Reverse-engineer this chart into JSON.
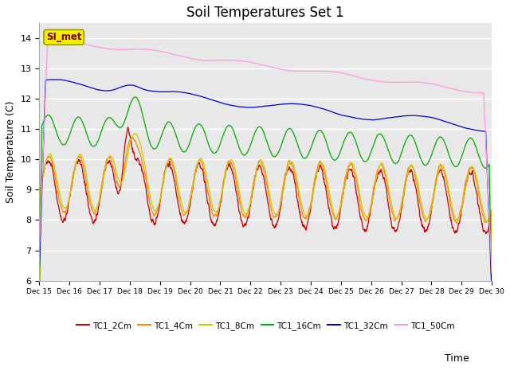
{
  "title": "Soil Temperatures Set 1",
  "xlabel": "Time",
  "ylabel": "Soil Temperature (C)",
  "ylim": [
    6.0,
    14.5
  ],
  "yticks": [
    6.0,
    7.0,
    8.0,
    9.0,
    10.0,
    11.0,
    12.0,
    13.0,
    14.0
  ],
  "x_tick_days": [
    15,
    16,
    17,
    18,
    19,
    20,
    21,
    22,
    23,
    24,
    25,
    26,
    27,
    28,
    29,
    30
  ],
  "colors": {
    "TC1_2Cm": "#cc0000",
    "TC1_4Cm": "#ff8800",
    "TC1_8Cm": "#cccc00",
    "TC1_16Cm": "#00aa00",
    "TC1_32Cm": "#0000cc",
    "TC1_50Cm": "#ff99dd"
  },
  "background_color": "#e8e8e8",
  "figure_background": "#ffffff",
  "si_met_label": "SI_met",
  "si_met_text_color": "#880000",
  "si_met_bg_color": "#f5f000",
  "si_met_edge_color": "#999900",
  "legend_labels": [
    "TC1_2Cm",
    "TC1_4Cm",
    "TC1_8Cm",
    "TC1_16Cm",
    "TC1_32Cm",
    "TC1_50Cm"
  ]
}
